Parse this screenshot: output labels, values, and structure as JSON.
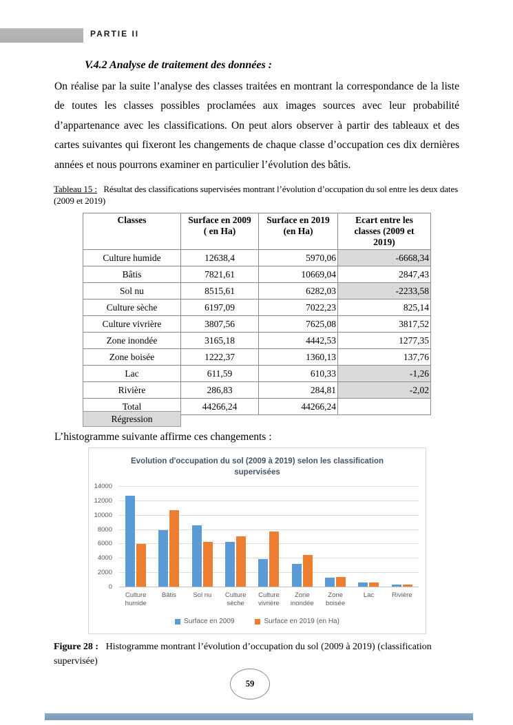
{
  "header": {
    "partie_label": "PARTIE II"
  },
  "section": {
    "title": "V.4.2 Analyse de traitement des données :",
    "paragraph": "On réalise par la suite l’analyse des classes traitées en montrant la correspondance de la liste de toutes les classes possibles proclamées aux images sources avec leur probabilité d’appartenance avec les classifications. On peut alors observer à partir des tableaux et des cartes suivantes qui fixeront les changements de chaque classe d’occupation ces dix dernières années et nous pourrons examiner en particulier l’évolution des bâtis."
  },
  "table": {
    "caption_label": "Tableau 15 :",
    "caption_text": "Résultat des classifications supervisées montrant l’évolution d’occupation du sol entre les deux dates (2009 et 2019)",
    "headers": [
      "Classes",
      "Surface en 2009\n( en Ha)",
      "Surface en 2019\n(en Ha)",
      "Ecart entre les\nclasses (2009 et\n2019)"
    ],
    "rows": [
      {
        "classe": "Culture humide",
        "s2009": "12638,4",
        "s2019": "5970,06",
        "ecart": "-6668,34",
        "shaded": true
      },
      {
        "classe": "Bâtis",
        "s2009": "7821,61",
        "s2019": "10669,04",
        "ecart": "2847,43",
        "shaded": false
      },
      {
        "classe": "Sol nu",
        "s2009": "8515,61",
        "s2019": "6282,03",
        "ecart": "-2233,58",
        "shaded": true
      },
      {
        "classe": "Culture sèche",
        "s2009": "6197,09",
        "s2019": "7022,23",
        "ecart": "825,14",
        "shaded": false
      },
      {
        "classe": "Culture vivrière",
        "s2009": "3807,56",
        "s2019": "7625,08",
        "ecart": "3817,52",
        "shaded": false
      },
      {
        "classe": "Zone inondée",
        "s2009": "3165,18",
        "s2019": "4442,53",
        "ecart": "1277,35",
        "shaded": false
      },
      {
        "classe": "Zone boisée",
        "s2009": "1222,37",
        "s2019": "1360,13",
        "ecart": "137,76",
        "shaded": false
      },
      {
        "classe": "Lac",
        "s2009": "611,59",
        "s2019": "610,33",
        "ecart": "-1,26",
        "shaded": true
      },
      {
        "classe": "Rivière",
        "s2009": "286,83",
        "s2019": "284,81",
        "ecart": "-2,02",
        "shaded": true
      },
      {
        "classe": "Total",
        "s2009": "44266,24",
        "s2019": "44266,24",
        "ecart": "",
        "shaded": false
      }
    ],
    "regression_label": "Régression"
  },
  "histogram_intro": "L’histogramme suivante affirme ces changements :",
  "chart_data": {
    "type": "bar",
    "title": "Evolution d'occupation du sol (2009 à 2019) selon les classification supervisées",
    "categories": [
      "Culture humide",
      "Bâtis",
      "Sol nu",
      "Culture sèche",
      "Culture vivrière",
      "Zone inondée",
      "Zone boisée",
      "Lac",
      "Rivière"
    ],
    "series": [
      {
        "name": "Surface en 2009",
        "color": "#5B9BD5",
        "values": [
          12638.4,
          7821.61,
          8515.61,
          6197.09,
          3807.56,
          3165.18,
          1222.37,
          611.59,
          286.83
        ]
      },
      {
        "name": "Surface en 2019 (en Ha)",
        "color": "#ED7D31",
        "values": [
          5970.06,
          10669.04,
          6282.03,
          7022.23,
          7625.08,
          4442.53,
          1360.13,
          610.33,
          284.81
        ]
      }
    ],
    "xlabel": "",
    "ylabel": "",
    "ylim": [
      0,
      14000
    ],
    "ytick_step": 2000,
    "grid": true,
    "legend_position": "bottom"
  },
  "figure": {
    "caption_label": "Figure 28 :",
    "caption_text": "Histogramme montrant l’évolution d’occupation du sol (2009 à 2019) (classification supervisée)"
  },
  "footer": {
    "page_number": "59"
  }
}
